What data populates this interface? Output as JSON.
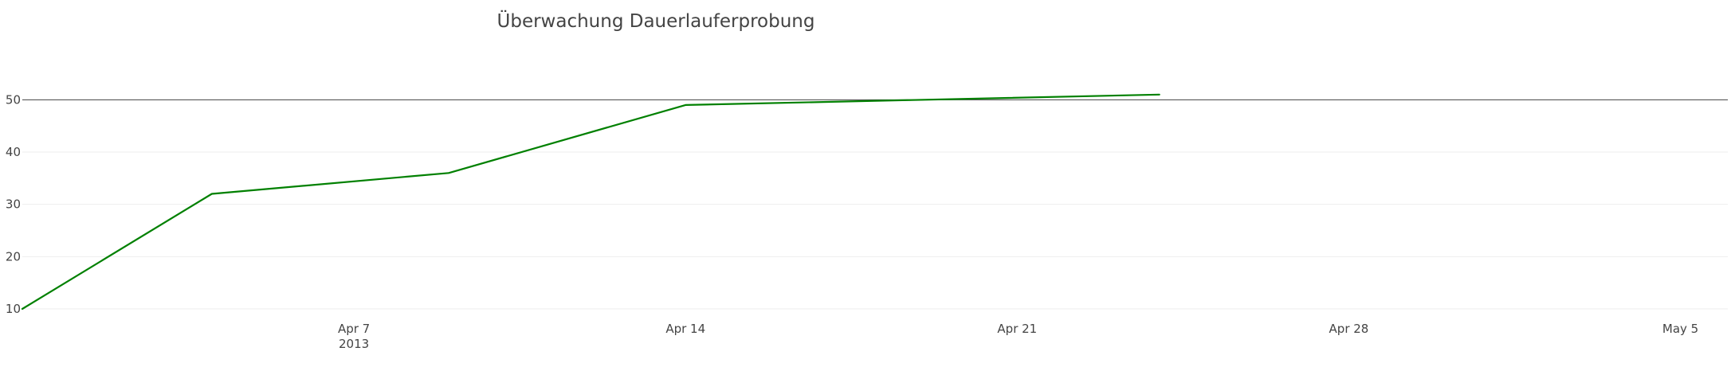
{
  "chart_data": {
    "type": "line",
    "title": "Überwachung Dauerlauferprobung",
    "xlabel": "",
    "ylabel": "",
    "x_axis": {
      "type": "date",
      "range": [
        "2013-03-31",
        "2013-05-06"
      ],
      "ticks": [
        {
          "date": "2013-04-07",
          "label": "Apr 7",
          "sublabel": "2013"
        },
        {
          "date": "2013-04-14",
          "label": "Apr 14",
          "sublabel": ""
        },
        {
          "date": "2013-04-21",
          "label": "Apr 21",
          "sublabel": ""
        },
        {
          "date": "2013-04-28",
          "label": "Apr 28",
          "sublabel": ""
        },
        {
          "date": "2013-05-05",
          "label": "May 5",
          "sublabel": ""
        }
      ]
    },
    "y_axis": {
      "range": [
        10,
        63
      ],
      "ticks": [
        10,
        20,
        30,
        40,
        50
      ]
    },
    "grid": true,
    "legend": "none",
    "reference_line": {
      "y": 50,
      "color": "#444444"
    },
    "series": [
      {
        "color": "#008000",
        "points": [
          {
            "x": "2013-03-31",
            "y": 10
          },
          {
            "x": "2013-04-04",
            "y": 32
          },
          {
            "x": "2013-04-09",
            "y": 36
          },
          {
            "x": "2013-04-14",
            "y": 49
          },
          {
            "x": "2013-04-24",
            "y": 51
          }
        ]
      }
    ]
  }
}
